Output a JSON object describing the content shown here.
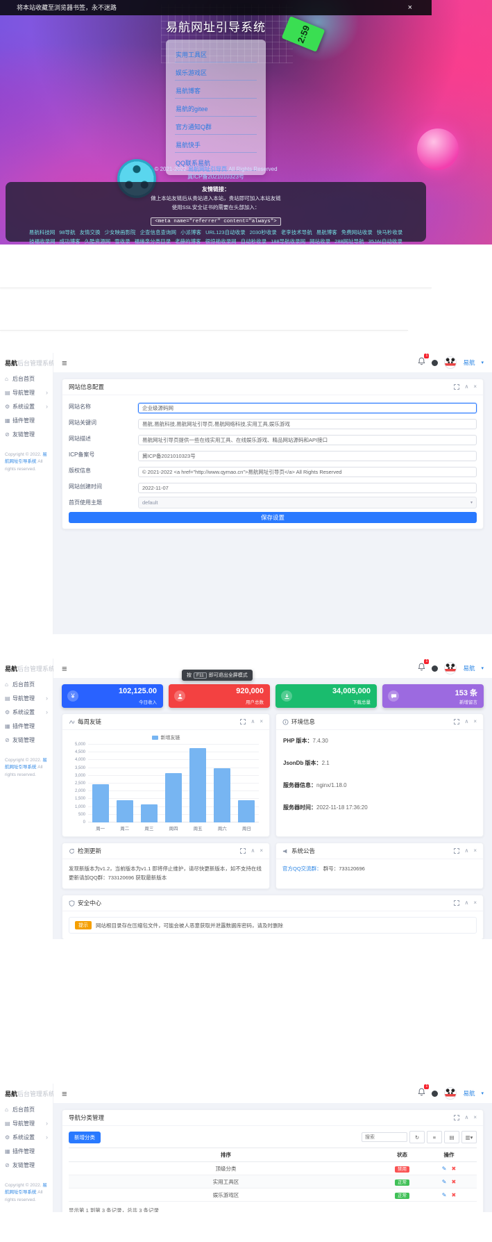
{
  "hero": {
    "notice_text": "将本站收藏至浏览器书签，永不迷路",
    "close_icon": "×",
    "title": "易航网址引导系统",
    "clock_tag": "2:59",
    "menu_items": [
      "实用工具区",
      "娱乐游戏区",
      "易航博客",
      "易航的gitee",
      "官方通知Q群",
      "易航快手",
      "QQ联系易航"
    ],
    "copyright_prefix": "© 2021-2022 ",
    "copyright_link": "易航网址引导页",
    "copyright_suffix": " All Rights Reserved",
    "icp": "冀ICP备2021010323号",
    "friends_heading": "友情链接：",
    "friends_line1": "做上本站友链后从贵站进入本站，贵站即可加入本站友链",
    "friends_line2": "使用SSL安全证书的需要在头部加入：",
    "friends_code": "<meta name=\"referrer\" content=\"always\">",
    "tags": [
      "易航科技网",
      "98导航",
      "友情交换",
      "少女映画影院",
      "企查信息查询网",
      "小派博客",
      "URL123自动收录",
      "2030秒收录",
      "老李技术导航",
      "易航博客",
      "免费网站收录",
      "快马秒收录",
      "技福收录网",
      "成功博客",
      "久酷资源网",
      "雪收录",
      "福缘泉分类目录",
      "老薛的博客",
      "很惊艳收录网",
      "自动秒收录",
      "188导航收录网",
      "网站收录",
      "288网址导航",
      "35JAI自动收录",
      "9300自动收录额",
      "999收录网",
      "www.qymao.cn",
      "www.qymao.cn",
      "一起收录网",
      "一路同秒收录网",
      "崇外博客",
      "九澜秒收录",
      "似水流年",
      "凌云导航网",
      "好运秒收录",
      "小笑博客",
      "技术导航",
      "K站秒收录",
      "浩宇导航",
      "王先生笔记",
      "西藏秒收录",
      "秒收录",
      "笑天博客",
      "老李收录网",
      "自动收录",
      "自动秒收录(0558.la)",
      "自动秒收录网",
      "芸落云导航网",
      "海子秒收录网"
    ]
  },
  "admin": {
    "logo_bold": "易航",
    "logo_light": "后台管理系统",
    "sidebar": [
      {
        "icon": "home",
        "label": "后台首页",
        "arrow": ""
      },
      {
        "icon": "nav",
        "label": "导航管理",
        "arrow": "›"
      },
      {
        "icon": "settings",
        "label": "系统设置",
        "arrow": "›"
      },
      {
        "icon": "plugin",
        "label": "插件管理",
        "arrow": ""
      },
      {
        "icon": "link",
        "label": "友链管理",
        "arrow": ""
      }
    ],
    "footer_prefix": "Copyright © 2022. ",
    "footer_link": "易航网址引导系统",
    "footer_suffix": " All rights reserved.",
    "notification_count": "1",
    "username": "易航"
  },
  "config_page": {
    "card_title": "网站信息配置",
    "fields": [
      {
        "label": "网站名称",
        "value": "企业级源码网",
        "focused": true
      },
      {
        "label": "网站关键词",
        "value": "易航,易航科技,易航网址引导页,易航网络科技,实用工具,娱乐游戏"
      },
      {
        "label": "网站描述",
        "value": "易航网址引导页提供一些在线实用工具、在线娱乐游戏、精品网站源码和API接口"
      },
      {
        "label": "ICP备案号",
        "value": "冀ICP备2021010323号"
      },
      {
        "label": "版权信息",
        "value": "© 2021-2022 <a href=\"http://www.qymao.cn\">易航网址引导页</a> All Rights Reserved"
      },
      {
        "label": "网站创建时间",
        "value": "2022-11-07"
      },
      {
        "label": "首页使用主题",
        "value": "default",
        "type": "select"
      }
    ],
    "save_label": "保存设置"
  },
  "dashboard": {
    "fullscreen_tip": {
      "prefix": "按",
      "key": "F11",
      "suffix": "即可退出全屏模式"
    },
    "stats": [
      {
        "value": "102,125.00",
        "label": "今日收入",
        "color": "#2962ff",
        "icon": "yen"
      },
      {
        "value": "920,000",
        "label": "用户总数",
        "color": "#f34141",
        "icon": "user"
      },
      {
        "value": "34,005,000",
        "label": "下载总量",
        "color": "#1abc6e",
        "icon": "download"
      },
      {
        "value": "153 条",
        "label": "新增留言",
        "color": "#9c6ae0",
        "icon": "message"
      }
    ],
    "chart_card_title": "每周友链",
    "env_card_title": "环境信息",
    "env_rows": [
      {
        "label": "PHP 版本：",
        "value": "7.4.30"
      },
      {
        "label": "JsonDb 版本：",
        "value": "2.1"
      },
      {
        "label": "服务器信息：",
        "value": "nginx/1.18.0"
      },
      {
        "label": "服务器时间：",
        "value": "2022-11-18 17:36:20"
      }
    ],
    "update_card_title": "检测更新",
    "update_text": "发现新版本为v1.2，当前版本为v1.1 即将停止维护，请尽快更新版本，如不支持在线更新请加QQ群：733120696 获取最新版本",
    "notice_card_title": "系统公告",
    "notice_link": "官方QQ交流群：",
    "notice_text": "群号：733120696",
    "security_card_title": "安全中心",
    "security_badge": "提示",
    "security_text": "网站根目录存在压缩包文件，可能会被人恶意获取并泄露数据库密码，请及时删除"
  },
  "chart_data": {
    "type": "bar",
    "title": "每周友链",
    "categories": [
      "周一",
      "周二",
      "周三",
      "周四",
      "周五",
      "周六",
      "周日"
    ],
    "series": [
      {
        "name": "新增友链",
        "values": [
          2450,
          1450,
          1150,
          3150,
          4780,
          3470,
          1450
        ]
      }
    ],
    "ylim": [
      0,
      5000
    ],
    "ytick_step": 500,
    "xlabel": "",
    "ylabel": "",
    "grid": true,
    "legend_position": "top",
    "bar_color": "#77b5f2"
  },
  "category_page": {
    "card_title": "导航分类管理",
    "add_button": "新增分类",
    "search_placeholder": "搜索",
    "columns": [
      "排序",
      "状态",
      "操作"
    ],
    "rows": [
      {
        "name": "顶级分类",
        "status": "禁用",
        "status_color": "#fa5252"
      },
      {
        "name": "实用工具区",
        "status": "正常",
        "status_color": "#40c057"
      },
      {
        "name": "娱乐游戏区",
        "status": "正常",
        "status_color": "#40c057"
      }
    ],
    "footer_text": "显示第 1 到第 3 条记录，总共 3 条记录"
  }
}
